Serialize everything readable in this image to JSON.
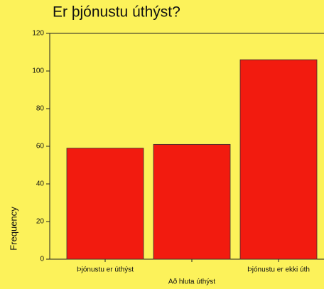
{
  "chart_data": {
    "type": "bar",
    "title": "Er þjónustu úthýst?",
    "categories": [
      "Þjónustu er úthýst",
      "Að hluta úthýst",
      "Þjónustu er ekki úth"
    ],
    "values": [
      59,
      61,
      106
    ],
    "color": "#f21b0f",
    "ylabel": "Frequency",
    "ylim": [
      0,
      120
    ],
    "yticks": [
      0,
      20,
      40,
      60,
      80,
      100,
      120
    ],
    "grid": false
  }
}
